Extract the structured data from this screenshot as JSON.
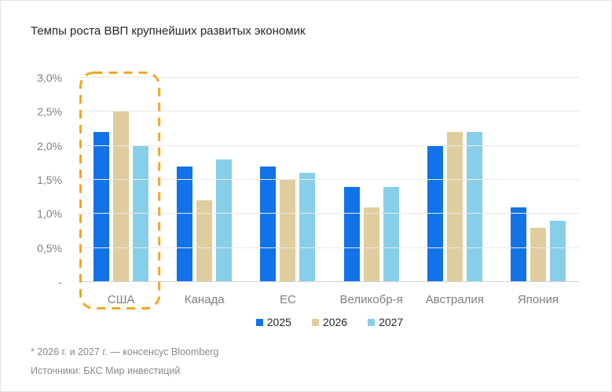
{
  "title": "Темпы роста ВВП крупнейших развитых экономик",
  "chart_data": {
    "type": "bar",
    "title": "Темпы роста ВВП крупнейших развитых экономик",
    "categories": [
      "США",
      "Канада",
      "ЕС",
      "Великобр-я",
      "Австралия",
      "Япония"
    ],
    "series": [
      {
        "name": "2025",
        "color": "#1272E8",
        "values": [
          2.2,
          1.7,
          1.7,
          1.4,
          2.0,
          1.1
        ]
      },
      {
        "name": "2026",
        "color": "#E0CD9D",
        "values": [
          2.5,
          1.2,
          1.5,
          1.1,
          2.2,
          0.8
        ]
      },
      {
        "name": "2027",
        "color": "#87CFE9",
        "values": [
          2.0,
          1.8,
          1.6,
          1.4,
          2.2,
          0.9
        ]
      }
    ],
    "y_ticks": [
      {
        "value": 3.0,
        "label": "3,0%"
      },
      {
        "value": 2.5,
        "label": "2,5%"
      },
      {
        "value": 2.0,
        "label": "2,0%"
      },
      {
        "value": 1.5,
        "label": "1,5%"
      },
      {
        "value": 1.0,
        "label": "1,0%"
      },
      {
        "value": 0.5,
        "label": "0,5%"
      },
      {
        "value": 0.0,
        "label": "-"
      }
    ],
    "ylim": [
      0,
      3.0
    ],
    "grid": true,
    "legend_position": "bottom",
    "highlight": {
      "category": "США",
      "style": "dashed-rounded-rect",
      "color": "#F5A623"
    }
  },
  "footnotes": [
    "* 2026 г. и 2027 г. — консенсус Bloomberg",
    "Источники: БКС Мир инвестиций"
  ]
}
